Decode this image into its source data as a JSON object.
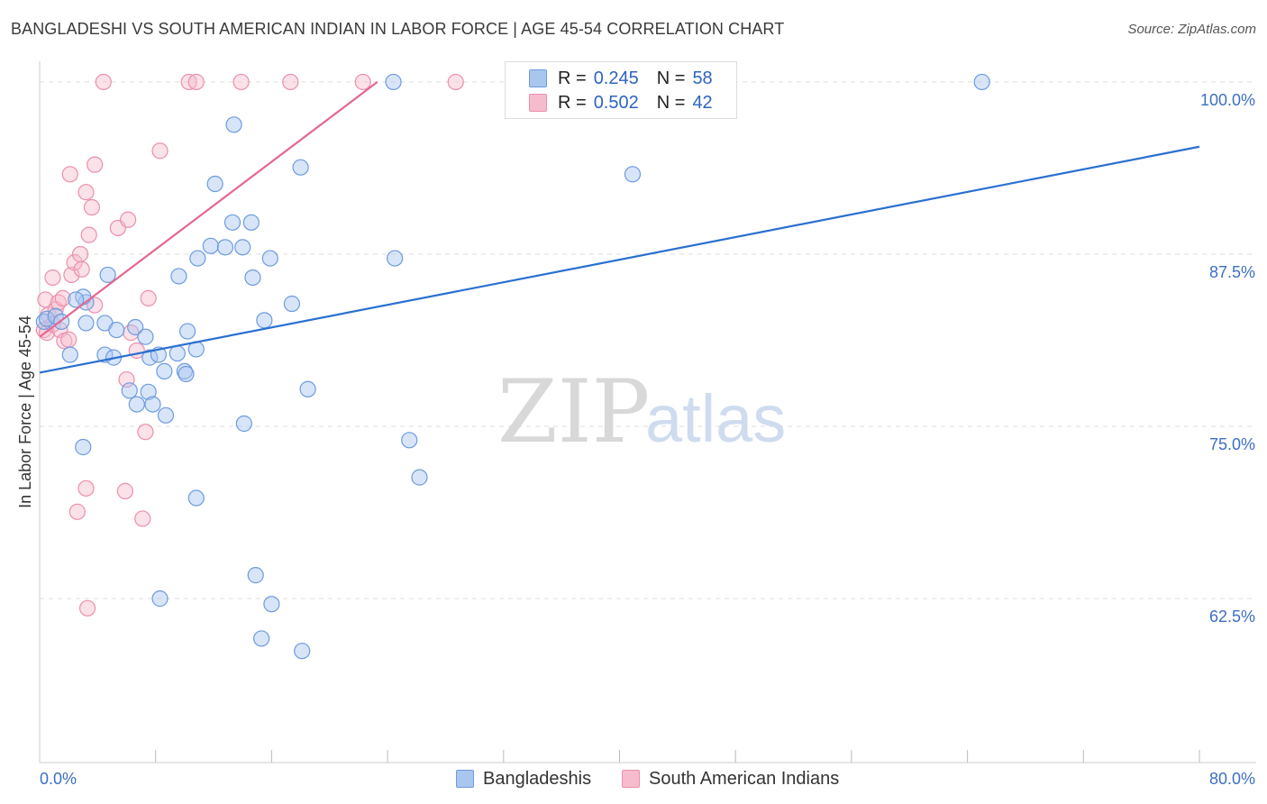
{
  "title": "BANGLADESHI VS SOUTH AMERICAN INDIAN IN LABOR FORCE | AGE 45-54 CORRELATION CHART",
  "source": "Source: ZipAtlas.com",
  "watermark": {
    "zip": "ZIP",
    "atlas": "atlas"
  },
  "colors": {
    "blue_fill": "#a9c6ef",
    "blue_stroke": "#6d9be0",
    "blue_line": "#2a6fd0",
    "pink_fill": "#f6bccd",
    "pink_stroke": "#ec8fac",
    "pink_line": "#e36792",
    "grid": "#dddddd",
    "axis_label": "#3d6fc4"
  },
  "legend": {
    "r_label": "R =",
    "n_label": "N =",
    "series": [
      {
        "name": "Bangladeshis",
        "r": "0.245",
        "n": "58"
      },
      {
        "name": "South American Indians",
        "r": "0.502",
        "n": "42"
      }
    ]
  },
  "chart_data": {
    "type": "scatter",
    "title": "BANGLADESHI VS SOUTH AMERICAN INDIAN IN LABOR FORCE | AGE 45-54 CORRELATION CHART",
    "xlabel": "",
    "ylabel": "In Labor Force | Age 45-54",
    "xlim": [
      0,
      80
    ],
    "ylim": [
      50.6,
      101.5
    ],
    "x_tick_labels": [
      {
        "value": 0,
        "label": "0.0%"
      },
      {
        "value": 80,
        "label": "80.0%"
      }
    ],
    "x_minor_ticks": [
      8,
      16,
      24,
      32,
      40,
      48,
      56,
      64,
      72,
      80
    ],
    "y_ticks": [
      {
        "value": 100,
        "label": "100.0%"
      },
      {
        "value": 87.5,
        "label": "87.5%"
      },
      {
        "value": 75,
        "label": "75.0%"
      },
      {
        "value": 62.5,
        "label": "62.5%"
      }
    ],
    "grid": true,
    "legend_position": "top-center",
    "series": [
      {
        "name": "Bangladeshis",
        "color": "blue",
        "trend": {
          "x": [
            0,
            80
          ],
          "y": [
            78.9,
            95.3
          ]
        },
        "points": [
          [
            0.3,
            82.6
          ],
          [
            0.5,
            82.8
          ],
          [
            1.1,
            83.0
          ],
          [
            1.5,
            82.6
          ],
          [
            3.2,
            82.5
          ],
          [
            4.5,
            82.5
          ],
          [
            4.7,
            86.0
          ],
          [
            5.3,
            82.0
          ],
          [
            3.2,
            84.0
          ],
          [
            3.0,
            84.4
          ],
          [
            2.1,
            80.2
          ],
          [
            4.5,
            80.2
          ],
          [
            5.1,
            80.0
          ],
          [
            6.6,
            82.2
          ],
          [
            7.3,
            81.5
          ],
          [
            7.6,
            80.0
          ],
          [
            8.2,
            80.2
          ],
          [
            8.6,
            79.0
          ],
          [
            7.5,
            77.5
          ],
          [
            7.8,
            76.6
          ],
          [
            6.7,
            76.6
          ],
          [
            6.2,
            77.6
          ],
          [
            8.7,
            75.8
          ],
          [
            9.5,
            80.3
          ],
          [
            10.0,
            79.0
          ],
          [
            10.1,
            78.8
          ],
          [
            10.2,
            81.9
          ],
          [
            10.8,
            80.6
          ],
          [
            9.6,
            85.9
          ],
          [
            10.9,
            87.2
          ],
          [
            11.8,
            88.1
          ],
          [
            12.1,
            92.6
          ],
          [
            12.8,
            88.0
          ],
          [
            13.3,
            89.8
          ],
          [
            14.6,
            89.8
          ],
          [
            14.0,
            88.0
          ],
          [
            14.7,
            85.8
          ],
          [
            15.9,
            87.2
          ],
          [
            15.5,
            82.7
          ],
          [
            17.4,
            83.9
          ],
          [
            18.5,
            77.7
          ],
          [
            18.0,
            93.8
          ],
          [
            13.4,
            96.9
          ],
          [
            3.0,
            73.5
          ],
          [
            10.8,
            69.8
          ],
          [
            14.1,
            75.2
          ],
          [
            14.9,
            64.2
          ],
          [
            8.3,
            62.5
          ],
          [
            16.0,
            62.1
          ],
          [
            15.3,
            59.6
          ],
          [
            18.1,
            58.7
          ],
          [
            24.5,
            87.2
          ],
          [
            25.5,
            74.0
          ],
          [
            26.2,
            71.3
          ],
          [
            24.4,
            100.0
          ],
          [
            40.9,
            93.3
          ],
          [
            65.0,
            100.0
          ],
          [
            2.5,
            84.2
          ]
        ]
      },
      {
        "name": "South American Indians",
        "color": "pink",
        "trend": {
          "x": [
            0,
            23.3
          ],
          "y": [
            81.5,
            100.0
          ]
        },
        "points": [
          [
            0.3,
            82.0
          ],
          [
            0.5,
            81.8
          ],
          [
            0.4,
            84.2
          ],
          [
            0.6,
            83.1
          ],
          [
            0.9,
            82.4
          ],
          [
            1.1,
            83.5
          ],
          [
            1.3,
            84.0
          ],
          [
            1.6,
            84.3
          ],
          [
            1.4,
            82.0
          ],
          [
            1.7,
            81.2
          ],
          [
            2.0,
            81.3
          ],
          [
            2.2,
            86.0
          ],
          [
            0.9,
            85.8
          ],
          [
            2.4,
            86.9
          ],
          [
            2.8,
            87.5
          ],
          [
            2.9,
            86.4
          ],
          [
            3.4,
            88.9
          ],
          [
            3.6,
            90.9
          ],
          [
            3.2,
            92.0
          ],
          [
            2.1,
            93.3
          ],
          [
            3.8,
            94.0
          ],
          [
            5.4,
            89.4
          ],
          [
            6.1,
            90.0
          ],
          [
            3.8,
            83.8
          ],
          [
            6.3,
            81.8
          ],
          [
            6.7,
            80.5
          ],
          [
            7.5,
            84.3
          ],
          [
            6.0,
            78.4
          ],
          [
            7.3,
            74.6
          ],
          [
            5.9,
            70.3
          ],
          [
            3.2,
            70.5
          ],
          [
            2.6,
            68.8
          ],
          [
            7.1,
            68.3
          ],
          [
            3.3,
            61.8
          ],
          [
            8.3,
            95.0
          ],
          [
            4.4,
            100.0
          ],
          [
            10.3,
            100.0
          ],
          [
            10.8,
            100.0
          ],
          [
            13.9,
            100.0
          ],
          [
            17.3,
            100.0
          ],
          [
            22.3,
            100.0
          ],
          [
            28.7,
            100.0
          ]
        ]
      }
    ]
  }
}
